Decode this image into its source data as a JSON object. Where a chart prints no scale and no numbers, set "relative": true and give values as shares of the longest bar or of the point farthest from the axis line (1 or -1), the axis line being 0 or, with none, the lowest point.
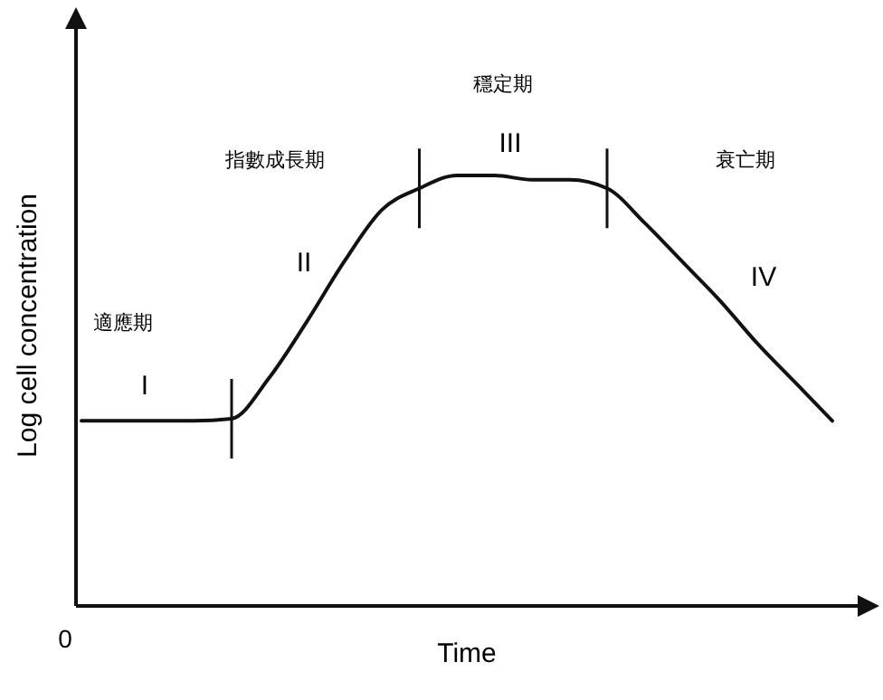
{
  "chart_data": {
    "type": "line",
    "relative": true,
    "xlabel": "Time",
    "ylabel": "Log cell concentration",
    "tick_labels": false,
    "categories": [
      null,
      null,
      null,
      null,
      null,
      null,
      null,
      null,
      null,
      null,
      null,
      null,
      null,
      null,
      null,
      null,
      null,
      null,
      null,
      null,
      null
    ],
    "series": [
      {
        "color": "#111111",
        "values": [
          0.43,
          0.43,
          0.43,
          0.43,
          0.435,
          0.53,
          0.66,
          0.8,
          0.92,
          0.97,
          1.0,
          1.0,
          0.99,
          0.99,
          0.97,
          0.89,
          0.8,
          0.71,
          0.61,
          0.52,
          0.43
        ]
      }
    ],
    "annotations": [
      "0",
      "適應期",
      "指數成長期",
      "穩定期",
      "衰亡期",
      "I",
      "II",
      "III",
      "IV"
    ]
  }
}
